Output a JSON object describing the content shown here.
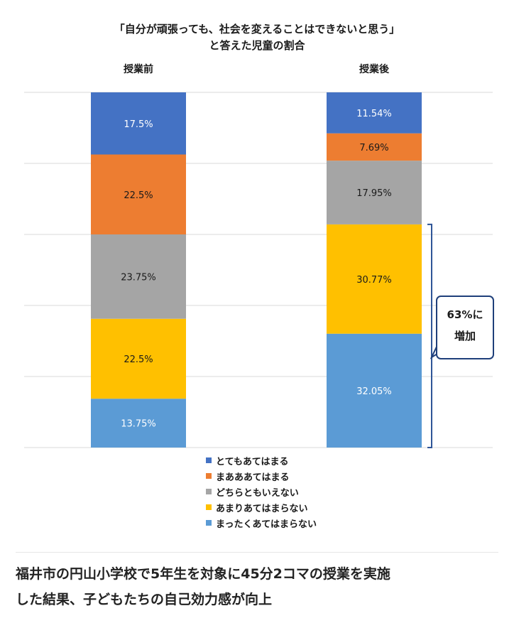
{
  "chart_data": {
    "type": "bar",
    "stacked": true,
    "title_lines": [
      "「自分が頑張っても、社会を変えることはできないと思う」",
      "と答えた児童の割合"
    ],
    "categories": [
      "授業前",
      "授業後"
    ],
    "series": [
      {
        "name": "まったくあてはまらない",
        "color": "#5b9bd5",
        "values": [
          13.75,
          32.05
        ],
        "labels": [
          "13.75%",
          "32.05%"
        ]
      },
      {
        "name": "あまりあてはまらない",
        "color": "#ffc000",
        "values": [
          22.5,
          30.77
        ],
        "labels": [
          "22.5%",
          "30.77%"
        ]
      },
      {
        "name": "どちらともいえない",
        "color": "#a5a5a5",
        "values": [
          23.75,
          17.95
        ],
        "labels": [
          "23.75%",
          "17.95%"
        ]
      },
      {
        "name": "まあああてはまる",
        "color": "#ed7d31",
        "values": [
          22.5,
          7.69
        ],
        "labels": [
          "22.5%",
          "7.69%"
        ]
      },
      {
        "name": "とてもあてはまる",
        "color": "#4472c4",
        "values": [
          17.5,
          11.54
        ],
        "labels": [
          "17.5%",
          "11.54%"
        ]
      }
    ],
    "legend_order": [
      "とてもあてはまる",
      "まあああてはまる",
      "どちらともいえない",
      "あまりあてはまらない",
      "まったくあてはまらない"
    ],
    "ylim": [
      0,
      100
    ],
    "grid": true,
    "legend_position": "bottom",
    "annotation": {
      "lines": [
        "63%に",
        "増加"
      ],
      "bracket_category": "授業後",
      "bracket_series": [
        "まったくあてはまらない",
        "あまりあてはまらない"
      ]
    }
  },
  "caption_lines": [
    "福井市の円山小学校で5年生を対象に45分2コマの授業を実施",
    "した結果、子どもたちの自己効力感が向上"
  ]
}
